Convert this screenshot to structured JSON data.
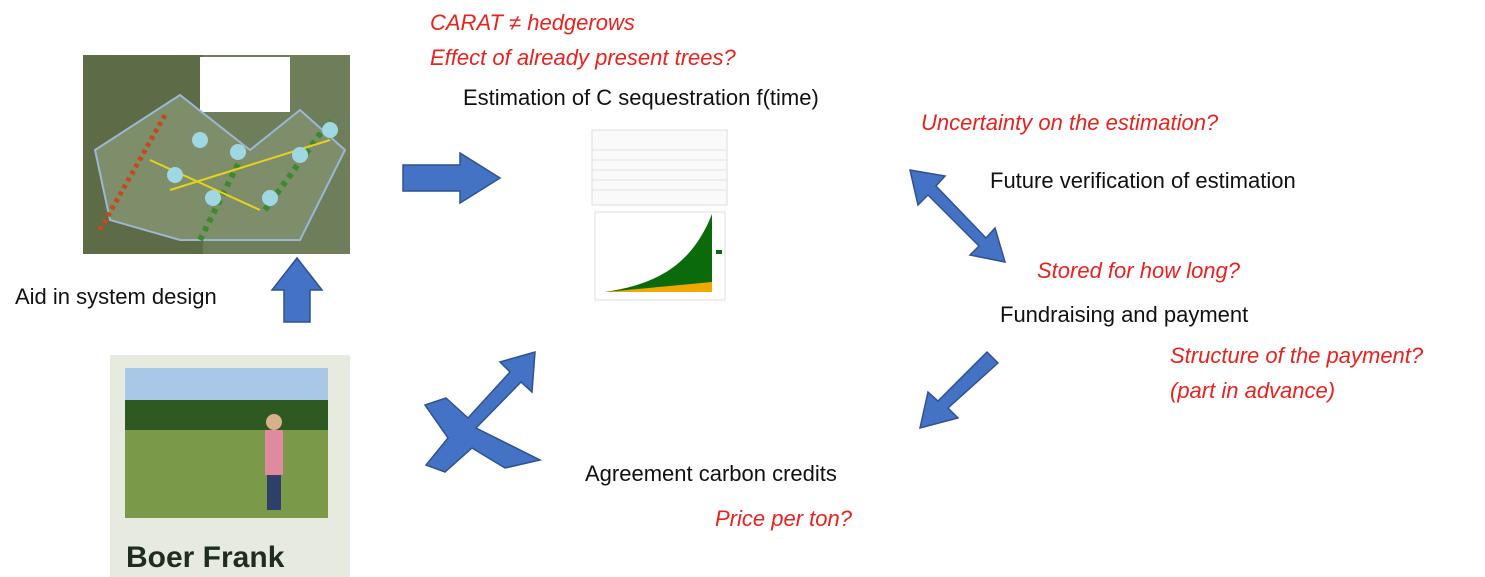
{
  "questions": {
    "carat": "CARAT ≠ hedgerows",
    "trees": "Effect of already present trees?",
    "uncertainty": "Uncertainty on the estimation?",
    "stored": "Stored for how long?",
    "structure": "Structure of the payment?",
    "advance": "(part in advance)",
    "price": "Price per ton?"
  },
  "steps": {
    "design": "Aid in system design",
    "estimation": "Estimation of C sequestration f(time)",
    "verification": "Future verification of estimation",
    "fundraising": "Fundraising and payment",
    "agreement": "Agreement carbon credits"
  },
  "farmer": "Boer Frank"
}
